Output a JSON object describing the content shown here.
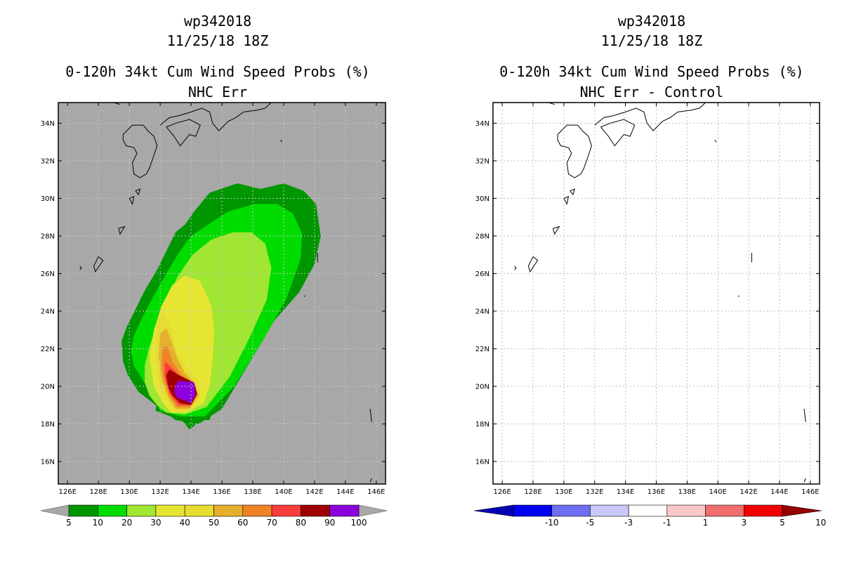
{
  "chart_data": [
    {
      "type": "contour-map",
      "storm_id": "wp342018",
      "datetime": "11/25/18 18Z",
      "title": "0-120h 34kt Cum Wind Speed Probs (%)",
      "subtitle": "NHC Err",
      "x_ticks": [
        "126E",
        "128E",
        "130E",
        "132E",
        "134E",
        "136E",
        "138E",
        "140E",
        "142E",
        "144E",
        "146E"
      ],
      "y_ticks": [
        "16N",
        "18N",
        "20N",
        "22N",
        "24N",
        "26N",
        "28N",
        "30N",
        "32N",
        "34N"
      ],
      "lon_range": [
        125.4,
        146.6
      ],
      "lat_range": [
        14.8,
        35.1
      ],
      "background": "#a8a8a8",
      "colorbar": {
        "labels": [
          "5",
          "10",
          "20",
          "30",
          "40",
          "50",
          "60",
          "70",
          "80",
          "90",
          "100"
        ],
        "colors": [
          "#009600",
          "#00dc00",
          "#a0e632",
          "#e6e632",
          "#e6dc32",
          "#e6af2d",
          "#f08228",
          "#fa3c3c",
          "#a00000",
          "#8c00dc"
        ]
      },
      "contours": [
        {
          "level": "5-10",
          "color": "#009600",
          "lon": [
            131.7,
            133,
            134.5,
            136,
            137.6,
            139.4,
            141,
            142,
            142.4,
            142.1,
            141.3,
            140,
            138.5,
            137,
            135.2,
            134.2,
            133.6,
            133,
            132.4,
            131.8,
            131,
            130.4,
            129.8,
            129.5,
            129.6,
            129.9,
            130.6,
            131.4
          ],
          "lat": [
            19,
            18.2,
            18,
            18.8,
            21,
            23.5,
            25,
            26.5,
            28,
            29.7,
            30.4,
            30.8,
            30.5,
            30.8,
            30.3,
            29.3,
            28.6,
            28.2,
            27.2,
            26.2,
            25.1,
            24.1,
            23.1,
            22.4,
            21.3,
            20.6,
            19.7,
            19.2
          ]
        },
        {
          "level": "10-20",
          "color": "#00dc00",
          "lon": [
            132,
            133.3,
            134.9,
            136.8,
            138.7,
            140.2,
            141.1,
            141.2,
            140.6,
            139.6,
            138.1,
            136.4,
            135.1,
            134,
            133.2,
            132.4,
            131.5,
            130.8,
            130.3,
            130.1,
            130.3,
            130.9,
            131.5
          ],
          "lat": [
            18.7,
            18.4,
            18.4,
            20,
            22.5,
            24.7,
            26.8,
            28.1,
            29.2,
            29.7,
            29.7,
            29.3,
            28.6,
            28,
            27.1,
            26,
            24.7,
            23.6,
            22.7,
            21.9,
            21.1,
            20.3,
            19.5
          ]
        },
        {
          "level": "20-30",
          "color": "#a0e632",
          "lon": [
            132.4,
            133.6,
            135,
            136.5,
            137.8,
            138.9,
            139.2,
            138.8,
            137.9,
            136.7,
            135.3,
            134.1,
            133.1,
            132.4,
            131.8,
            131.3,
            131,
            131,
            131.3,
            131.8
          ],
          "lat": [
            18.6,
            18.5,
            18.9,
            20.5,
            22.6,
            24.6,
            26.3,
            27.6,
            28.2,
            28.2,
            27.8,
            27,
            25.8,
            24.5,
            23.3,
            22.1,
            21.1,
            20.2,
            19.5,
            19
          ]
        },
        {
          "level": "30-40",
          "color": "#e6e632",
          "lon": [
            132.7,
            133.7,
            134.8,
            135.2,
            135.4,
            135.5,
            135.3,
            134.6,
            133.6,
            132.8,
            132.1,
            131.6,
            131.3,
            131.6,
            132.1
          ],
          "lat": [
            18.6,
            18.6,
            19.1,
            20,
            21.4,
            23,
            24.3,
            25.6,
            25.9,
            25.4,
            24.3,
            23,
            21.6,
            20,
            19.2
          ]
        },
        {
          "level": "40-50",
          "color": "#e6dc32",
          "lon": [
            132.9,
            133.8,
            134.6,
            134.5,
            133.8,
            133.1,
            132.6,
            132.2,
            131.9,
            131.7,
            131.7,
            132,
            132.5
          ],
          "lat": [
            18.7,
            18.7,
            19.4,
            20.3,
            20.9,
            21.8,
            23.3,
            23.9,
            23.6,
            22.8,
            21.3,
            19.9,
            19.2
          ]
        },
        {
          "level": "50-60",
          "color": "#e6af2d",
          "lon": [
            133,
            133.9,
            134.5,
            134.2,
            133.6,
            133.1,
            132.7,
            132.4,
            132,
            131.9,
            132.1,
            132.6
          ],
          "lat": [
            18.8,
            18.8,
            19.5,
            20.2,
            20.7,
            21.5,
            22.5,
            23.1,
            22.8,
            21.7,
            20.3,
            19.3
          ]
        },
        {
          "level": "60-70",
          "color": "#f08228",
          "lon": [
            133.1,
            134,
            134.4,
            134.1,
            133.4,
            132.8,
            132.5,
            132.2,
            132.1,
            132.2,
            132.6
          ],
          "lat": [
            18.9,
            18.9,
            19.6,
            20.2,
            20.6,
            21.3,
            22.1,
            22.1,
            21.4,
            20.5,
            19.5
          ]
        },
        {
          "level": "70-80",
          "color": "#fa3c3c",
          "lon": [
            133.2,
            134,
            134.4,
            134.1,
            133.2,
            132.6,
            132.3,
            132.3,
            132.6
          ],
          "lat": [
            19,
            19,
            19.6,
            20.2,
            20.6,
            21.1,
            21.3,
            20.5,
            19.6
          ]
        },
        {
          "level": "80-90",
          "color": "#a00000",
          "lon": [
            133.3,
            134,
            134.4,
            134.2,
            133.2,
            132.6,
            132.4,
            132.5,
            132.8
          ],
          "lat": [
            19.1,
            19,
            19.6,
            20.2,
            20.6,
            20.9,
            20.6,
            20,
            19.5
          ]
        },
        {
          "level": "90-100",
          "color": "#8c00dc",
          "lon": [
            133.7,
            134,
            134.3,
            134.2,
            133.2,
            133,
            132.9,
            133.1
          ],
          "lat": [
            19.2,
            19.1,
            19.6,
            20.2,
            20.3,
            20.1,
            19.7,
            19.4
          ]
        }
      ],
      "outer_border": {
        "lon": [
          131.7,
          133,
          133.4,
          133.9,
          134.2,
          134.6,
          135.2,
          135.4,
          135.4,
          135,
          134.6,
          133,
          132.5,
          132
        ],
        "lat": [
          18.7,
          18.3,
          18.2,
          17.7,
          17.9,
          18.2,
          18.2,
          18.7,
          19.8,
          20.3,
          20.1,
          20.3,
          20.8,
          20.2
        ]
      }
    },
    {
      "type": "contour-map",
      "storm_id": "wp342018",
      "datetime": "11/25/18 18Z",
      "title": "0-120h 34kt Cum Wind Speed Probs (%)",
      "subtitle": "NHC Err - Control",
      "x_ticks": [
        "126E",
        "128E",
        "130E",
        "132E",
        "134E",
        "136E",
        "138E",
        "140E",
        "142E",
        "144E",
        "146E"
      ],
      "y_ticks": [
        "16N",
        "18N",
        "20N",
        "22N",
        "24N",
        "26N",
        "28N",
        "30N",
        "32N",
        "34N"
      ],
      "lon_range": [
        125.4,
        146.6
      ],
      "lat_range": [
        14.8,
        35.1
      ],
      "background": "#ffffff",
      "colorbar": {
        "labels": [
          "-10",
          "-5",
          "-3",
          "-1",
          "1",
          "3",
          "5",
          "10"
        ],
        "colors": [
          "#0000b4",
          "#0000f0",
          "#6e6ef0",
          "#c8c8fa",
          "#ffffff",
          "#fac8c8",
          "#f06e6e",
          "#f00000",
          "#960000"
        ]
      },
      "contours": []
    }
  ]
}
